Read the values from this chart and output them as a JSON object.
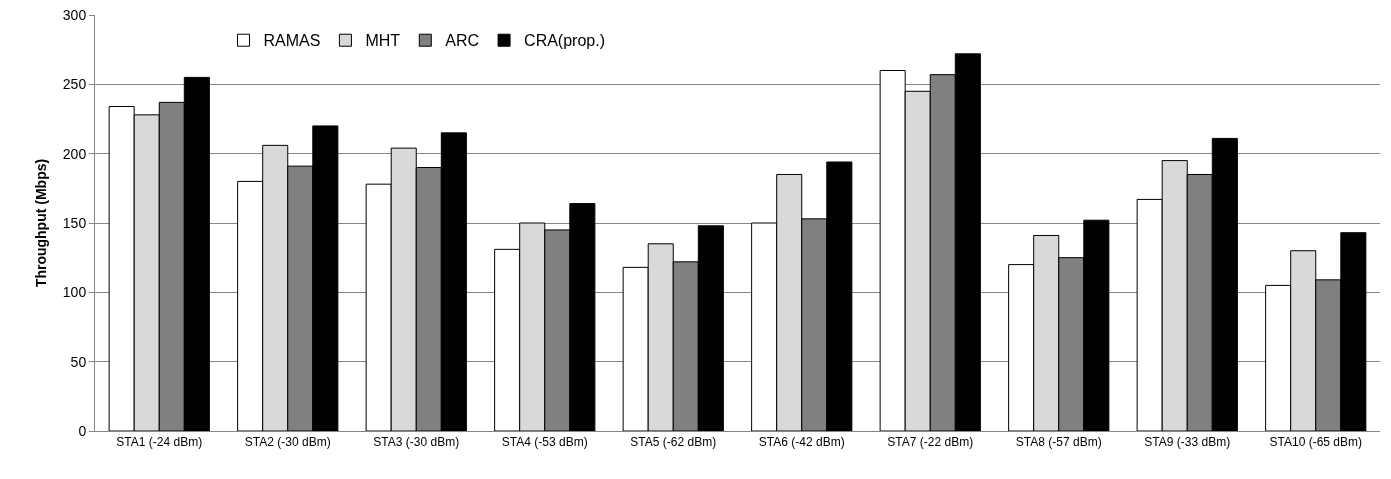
{
  "chart_data": {
    "type": "bar",
    "ylabel": "Throughput (Mbps)",
    "categories": [
      "STA1 (-24 dBm)",
      "STA2 (-30 dBm)",
      "STA3 (-30 dBm)",
      "STA4 (-53 dBm)",
      "STA5 (-62 dBm)",
      "STA6 (-42 dBm)",
      "STA7 (-22 dBm)",
      "STA8 (-57 dBm)",
      "STA9 (-33 dBm)",
      "STA10 (-65 dBm)"
    ],
    "series": [
      {
        "name": "RAMAS",
        "color": "#ffffff",
        "values": [
          234,
          180,
          178,
          131,
          118,
          150,
          260,
          120,
          167,
          105
        ]
      },
      {
        "name": "MHT",
        "color": "#d9d9d9",
        "values": [
          228,
          206,
          204,
          150,
          135,
          185,
          245,
          141,
          195,
          130
        ]
      },
      {
        "name": "ARC",
        "color": "#808080",
        "values": [
          237,
          191,
          190,
          145,
          122,
          153,
          257,
          125,
          185,
          109
        ]
      },
      {
        "name": "CRA(prop.)",
        "color": "#000000",
        "values": [
          255,
          220,
          215,
          164,
          148,
          194,
          272,
          152,
          211,
          143
        ]
      }
    ],
    "ylim": [
      0,
      300
    ],
    "yticks": [
      0,
      50,
      100,
      150,
      200,
      250,
      300
    ],
    "grid": "y",
    "legend": "top left"
  }
}
